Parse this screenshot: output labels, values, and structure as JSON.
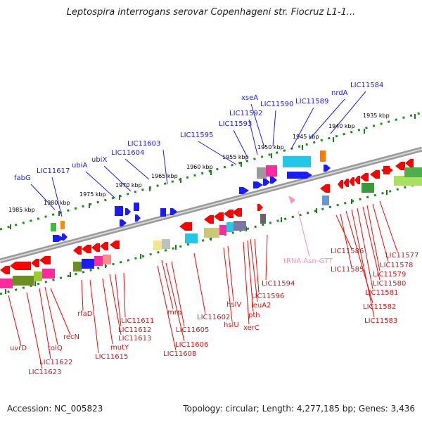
{
  "title": "Leptospira interrogans serovar Copenhageni str. Fiocruz L1-1...",
  "accession": "Accession: NC_005823",
  "topology": "Topology: circular; Length: 4,277,185 bp; Genes: 3,436",
  "scale_labels": [
    "1985 kbp",
    "1980 kbp",
    "1975 kbp",
    "1970 kbp",
    "1965 kbp",
    "1960 kbp",
    "1955 kbp",
    "1950 kbp",
    "1945 kbp",
    "1940 kbp",
    "1935 kbp"
  ],
  "labels_top": [
    "fabG",
    "LIC11617",
    "ubiA",
    "ubiX",
    "LIC11604",
    "LIC11603",
    "LIC11595",
    "LIC11593",
    "LIC11592",
    "xseA",
    "LIC11590",
    "LIC11589",
    "nrdA",
    "LIC11584"
  ],
  "labels_bottom": [
    "uvrD",
    "LIC11623",
    "LIC11622",
    "tolQ",
    "recN",
    "rfaD",
    "mutY",
    "LIC11615",
    "LIC11613",
    "LIC11612",
    "LIC11611",
    "LIC11608",
    "LIC11606",
    "LIC11605",
    "mrp",
    "LIC11602",
    "hslU",
    "hslV",
    "xerC",
    "pth",
    "leuA2",
    "LIC11596",
    "LIC11594",
    "LIC11586",
    "LIC11585",
    "LIC11582",
    "LIC11583",
    "LIC11581",
    "LIC11580",
    "LIC11579",
    "LIC11578",
    "LIC11577"
  ],
  "labels_rna": [
    "tRNA-Asn-GTT"
  ],
  "colors": {
    "blue_gene": "#1a1aff",
    "red_gene": "#ff0000",
    "rna": "#ff8fc0",
    "track": "#7a7a7a",
    "tick": "#1f7a1f"
  }
}
